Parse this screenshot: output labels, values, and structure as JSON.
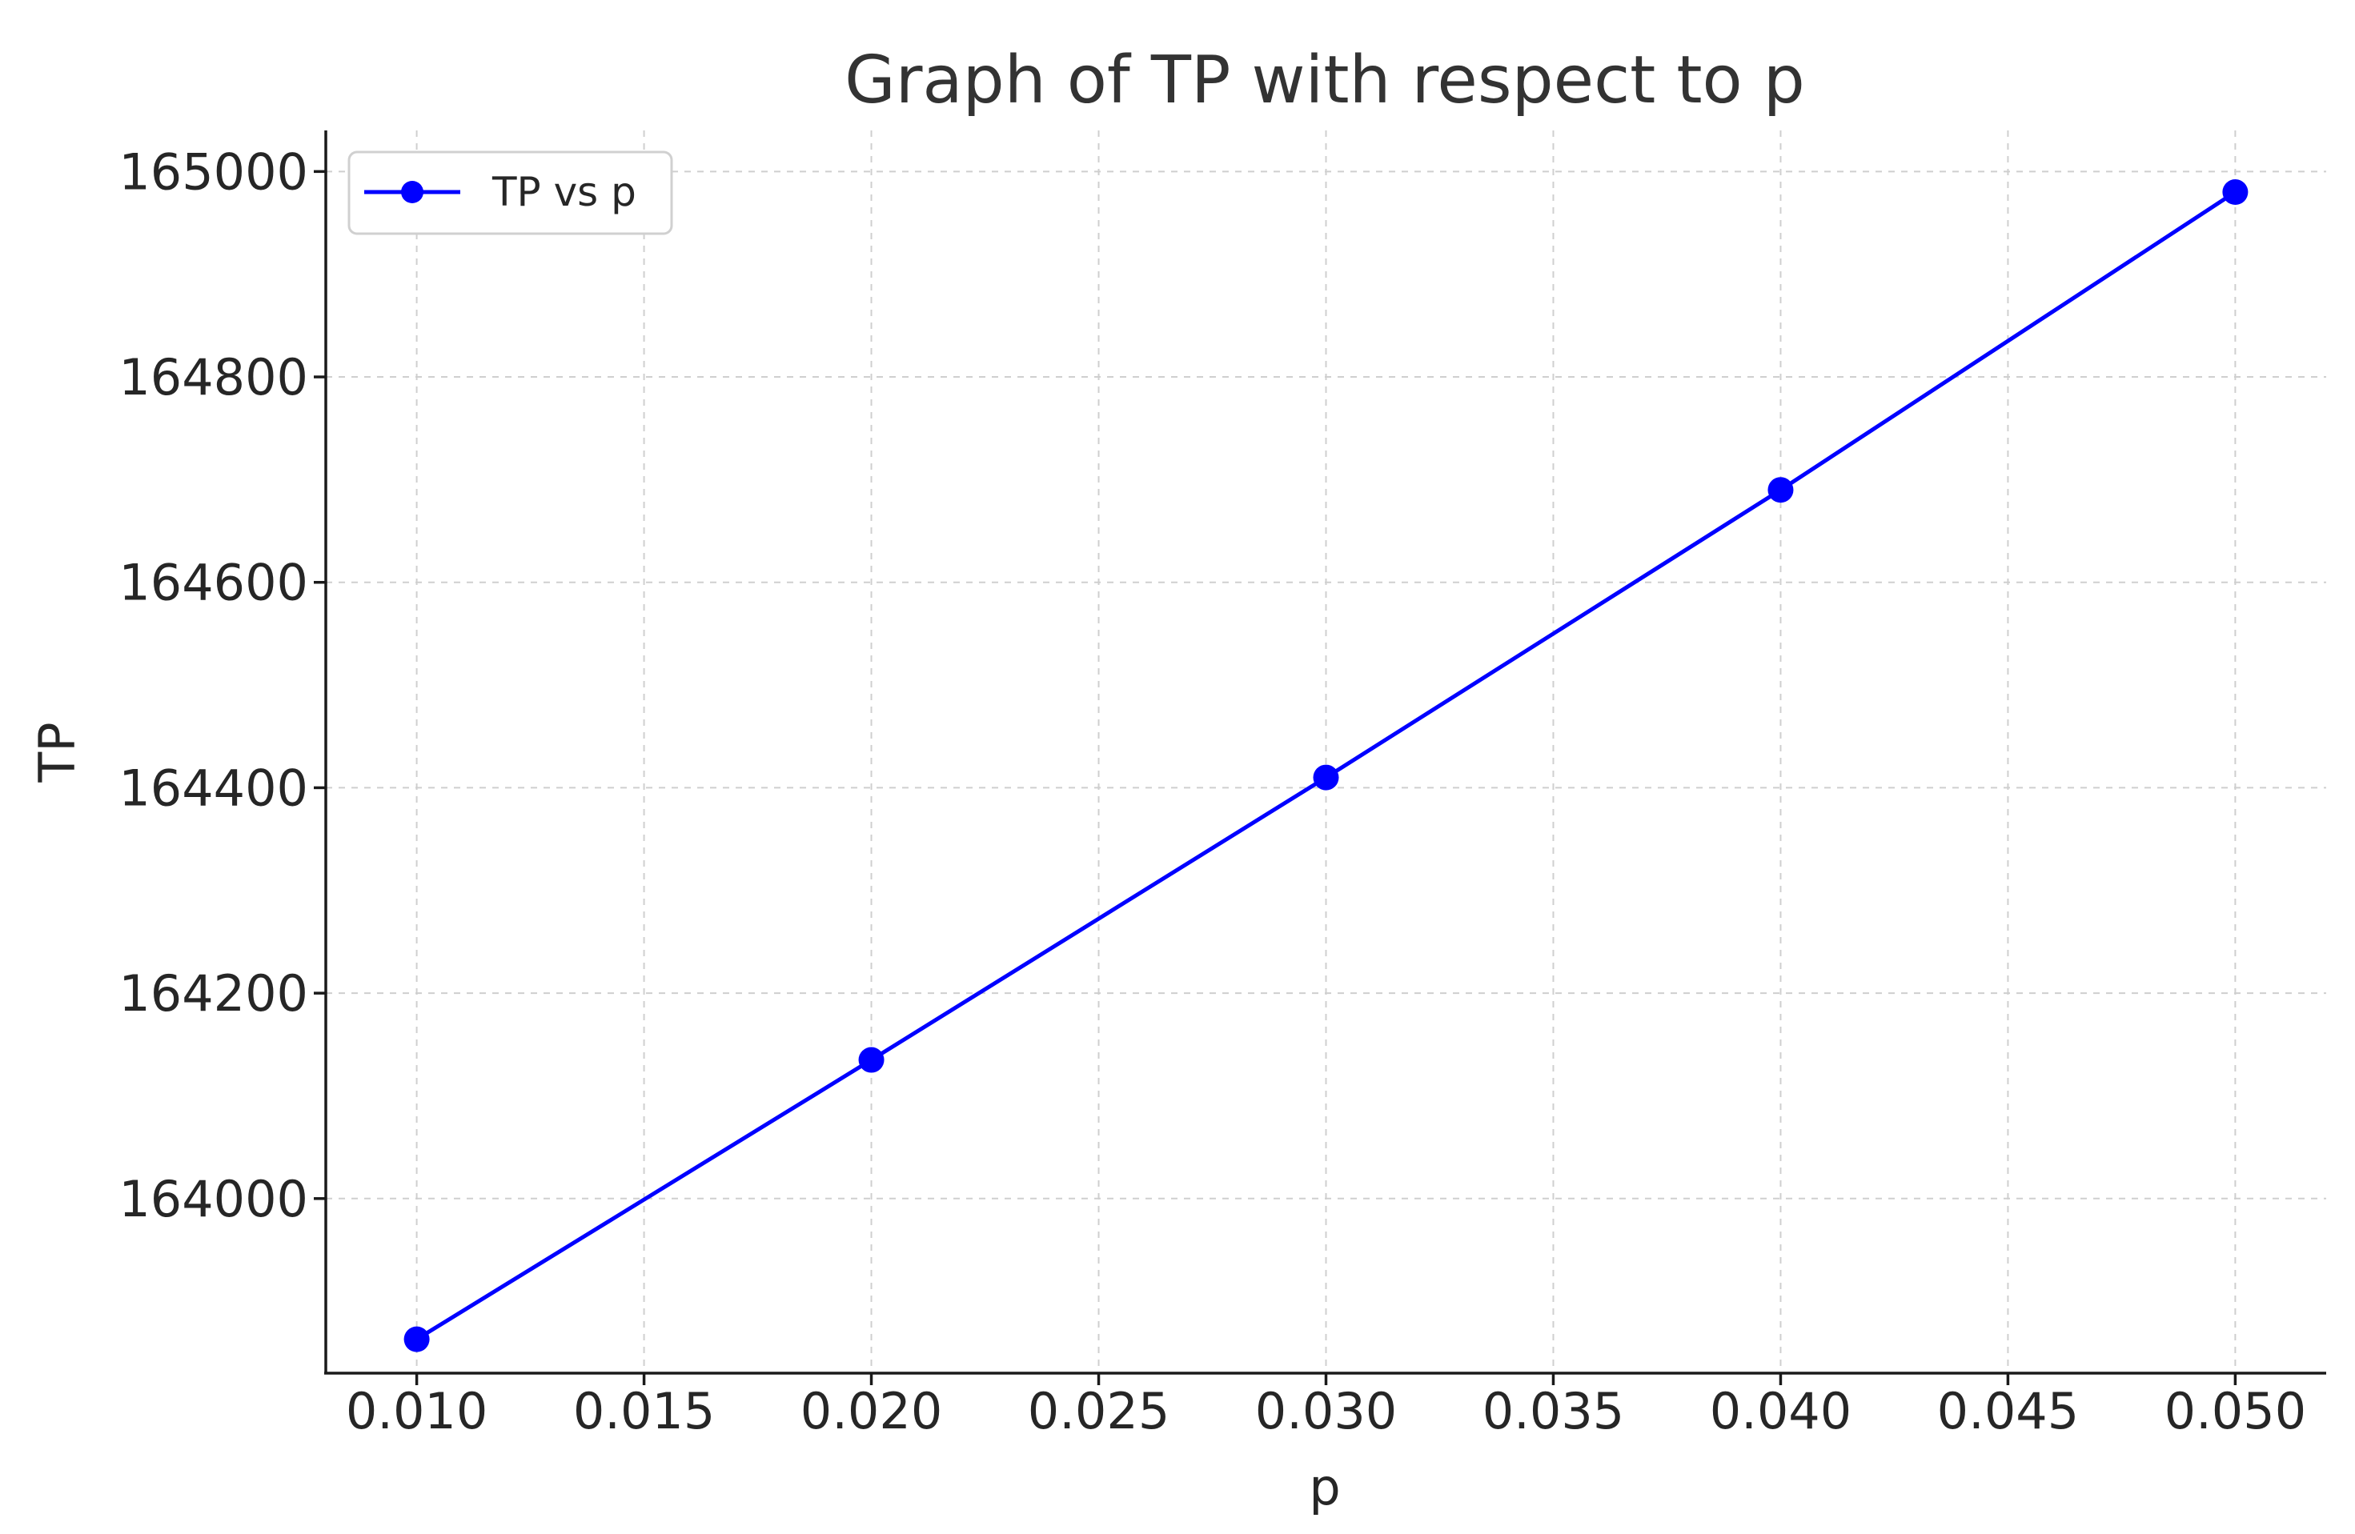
{
  "chart_data": {
    "type": "line",
    "title": "Graph of TP with respect to p",
    "xlabel": "p",
    "ylabel": "TP",
    "x": [
      0.01,
      0.02,
      0.03,
      0.04,
      0.05
    ],
    "series": [
      {
        "name": "TP vs p",
        "values": [
          163863,
          164135,
          164410,
          164690,
          164980
        ],
        "color": "#0000ff",
        "marker": "circle"
      }
    ],
    "xlim": [
      0.008,
      0.052
    ],
    "ylim": [
      163830,
      165040
    ],
    "xticks": [
      "0.010",
      "0.015",
      "0.020",
      "0.025",
      "0.030",
      "0.035",
      "0.040",
      "0.045",
      "0.050"
    ],
    "xtick_values": [
      0.01,
      0.015,
      0.02,
      0.025,
      0.03,
      0.035,
      0.04,
      0.045,
      0.05
    ],
    "yticks": [
      "164000",
      "164200",
      "164400",
      "164600",
      "164800",
      "165000"
    ],
    "ytick_values": [
      164000,
      164200,
      164400,
      164600,
      164800,
      165000
    ],
    "grid": true,
    "legend_position": "top-left"
  }
}
